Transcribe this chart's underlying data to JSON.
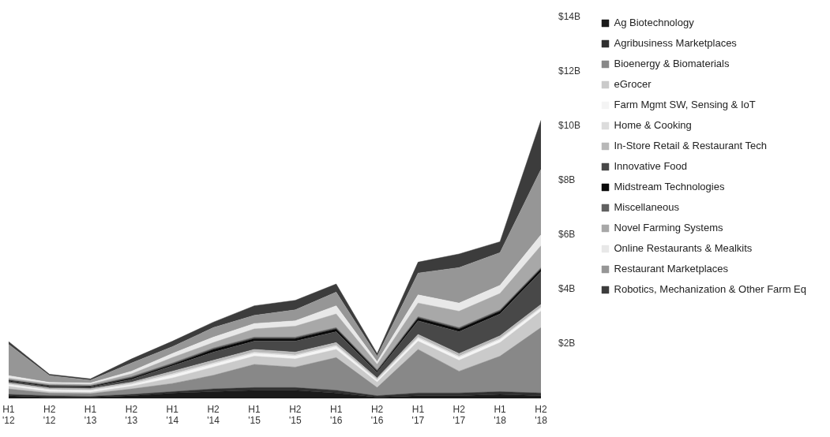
{
  "chart_data": {
    "type": "area",
    "stacked": true,
    "grid": false,
    "legend": "right",
    "categories": [
      "H1 '12",
      "H2 '12",
      "H1 '13",
      "H2 '13",
      "H1 '14",
      "H2 '14",
      "H1 '15",
      "H2 '15",
      "H1 '16",
      "H2 '16",
      "H1 '17",
      "H2 '17",
      "H1 '18",
      "H2 '18"
    ],
    "ylim": [
      0,
      14
    ],
    "yticks": [
      {
        "value": 2,
        "label": "$2B"
      },
      {
        "value": 4,
        "label": "$4B"
      },
      {
        "value": 6,
        "label": "$6B"
      },
      {
        "value": 8,
        "label": "$8B"
      },
      {
        "value": 10,
        "label": "$10B"
      },
      {
        "value": 12,
        "label": "$12B"
      },
      {
        "value": 14,
        "label": "$14B"
      }
    ],
    "series": [
      {
        "name": "Ag Biotechnology",
        "color": "#1a1a1a",
        "values": [
          0.1,
          0.05,
          0.05,
          0.1,
          0.2,
          0.25,
          0.3,
          0.3,
          0.2,
          0.05,
          0.1,
          0.1,
          0.15,
          0.1
        ]
      },
      {
        "name": "Agribusiness Marketplaces",
        "color": "#303030",
        "values": [
          0.05,
          0.05,
          0.03,
          0.05,
          0.05,
          0.1,
          0.1,
          0.1,
          0.1,
          0.05,
          0.1,
          0.1,
          0.1,
          0.1
        ]
      },
      {
        "name": "Bioenergy & Biomaterials",
        "color": "#888888",
        "values": [
          0.2,
          0.1,
          0.1,
          0.2,
          0.3,
          0.5,
          0.85,
          0.75,
          1.2,
          0.3,
          1.6,
          0.8,
          1.3,
          2.4
        ]
      },
      {
        "name": "eGrocer",
        "color": "#cacaca",
        "values": [
          0.1,
          0.05,
          0.05,
          0.1,
          0.2,
          0.3,
          0.3,
          0.3,
          0.3,
          0.2,
          0.3,
          0.4,
          0.5,
          0.6
        ]
      },
      {
        "name": "Farm Mgmt SW, Sensing & IoT",
        "color": "#f4f4f4",
        "values": [
          0.05,
          0.05,
          0.05,
          0.05,
          0.1,
          0.1,
          0.1,
          0.1,
          0.1,
          0.05,
          0.1,
          0.1,
          0.1,
          0.1
        ]
      },
      {
        "name": "Home & Cooking",
        "color": "#dcdcdc",
        "values": [
          0.03,
          0.03,
          0.03,
          0.05,
          0.05,
          0.05,
          0.05,
          0.05,
          0.05,
          0.05,
          0.05,
          0.05,
          0.05,
          0.05
        ]
      },
      {
        "name": "In-Store Retail & Restaurant Tech",
        "color": "#b8b8b8",
        "values": [
          0.05,
          0.05,
          0.05,
          0.05,
          0.1,
          0.1,
          0.1,
          0.1,
          0.1,
          0.05,
          0.1,
          0.1,
          0.1,
          0.1
        ]
      },
      {
        "name": "Innovative Food",
        "color": "#484848",
        "values": [
          0.05,
          0.05,
          0.05,
          0.1,
          0.2,
          0.3,
          0.3,
          0.4,
          0.4,
          0.2,
          0.5,
          0.8,
          0.8,
          1.2
        ]
      },
      {
        "name": "Midstream Technologies",
        "color": "#0a0a0a",
        "values": [
          0.03,
          0.03,
          0.03,
          0.05,
          0.05,
          0.1,
          0.1,
          0.1,
          0.1,
          0.05,
          0.1,
          0.1,
          0.1,
          0.1
        ]
      },
      {
        "name": "Miscellaneous",
        "color": "#606060",
        "values": [
          0.03,
          0.03,
          0.03,
          0.05,
          0.05,
          0.05,
          0.05,
          0.05,
          0.05,
          0.05,
          0.05,
          0.05,
          0.05,
          0.05
        ]
      },
      {
        "name": "Novel Farming Systems",
        "color": "#a8a8a8",
        "values": [
          0.05,
          0.05,
          0.05,
          0.1,
          0.2,
          0.2,
          0.3,
          0.4,
          0.5,
          0.2,
          0.5,
          0.6,
          0.6,
          0.8
        ]
      },
      {
        "name": "Online Restaurants & Mealkits",
        "color": "#e8e8e8",
        "values": [
          0.1,
          0.05,
          0.05,
          0.1,
          0.15,
          0.2,
          0.2,
          0.2,
          0.3,
          0.1,
          0.3,
          0.3,
          0.3,
          0.4
        ]
      },
      {
        "name": "Restaurant Marketplaces",
        "color": "#969696",
        "values": [
          1.15,
          0.25,
          0.1,
          0.3,
          0.25,
          0.35,
          0.3,
          0.4,
          0.5,
          0.2,
          0.8,
          1.3,
          1.2,
          2.4
        ]
      },
      {
        "name": "Robotics, Mechanization & Other Farm Eq",
        "color": "#3c3c3c",
        "values": [
          0.1,
          0.05,
          0.05,
          0.15,
          0.2,
          0.2,
          0.35,
          0.35,
          0.3,
          0.1,
          0.4,
          0.5,
          0.4,
          1.8
        ]
      }
    ]
  }
}
